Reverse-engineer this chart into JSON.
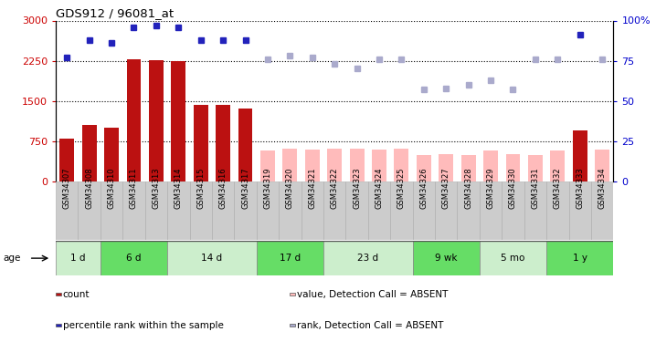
{
  "title": "GDS912 / 96081_at",
  "samples": [
    "GSM34307",
    "GSM34308",
    "GSM34310",
    "GSM34311",
    "GSM34313",
    "GSM34314",
    "GSM34315",
    "GSM34316",
    "GSM34317",
    "GSM34319",
    "GSM34320",
    "GSM34321",
    "GSM34322",
    "GSM34323",
    "GSM34324",
    "GSM34325",
    "GSM34326",
    "GSM34327",
    "GSM34328",
    "GSM34329",
    "GSM34330",
    "GSM34331",
    "GSM34332",
    "GSM34333",
    "GSM34334"
  ],
  "counts": [
    800,
    1050,
    1000,
    2270,
    2260,
    2250,
    1430,
    1430,
    1350,
    580,
    610,
    590,
    610,
    610,
    600,
    610,
    490,
    510,
    490,
    570,
    510,
    490,
    580,
    950,
    590
  ],
  "absent": [
    false,
    false,
    false,
    false,
    false,
    false,
    false,
    false,
    false,
    true,
    true,
    true,
    true,
    true,
    true,
    true,
    true,
    true,
    true,
    true,
    true,
    true,
    true,
    false,
    true
  ],
  "percentile": [
    77,
    88,
    86,
    96,
    97,
    96,
    88,
    88,
    88,
    76,
    78,
    77,
    73,
    70,
    76,
    76,
    57,
    58,
    60,
    63,
    57,
    76,
    76,
    91,
    76
  ],
  "pct_absent": [
    false,
    false,
    false,
    false,
    false,
    false,
    false,
    false,
    false,
    true,
    true,
    true,
    true,
    true,
    true,
    true,
    true,
    true,
    true,
    true,
    true,
    true,
    true,
    false,
    true
  ],
  "age_groups": [
    {
      "label": "1 d",
      "start": 0,
      "end": 2,
      "color": "#cceecc"
    },
    {
      "label": "6 d",
      "start": 2,
      "end": 5,
      "color": "#66dd66"
    },
    {
      "label": "14 d",
      "start": 5,
      "end": 9,
      "color": "#cceecc"
    },
    {
      "label": "17 d",
      "start": 9,
      "end": 12,
      "color": "#66dd66"
    },
    {
      "label": "23 d",
      "start": 12,
      "end": 16,
      "color": "#cceecc"
    },
    {
      "label": "9 wk",
      "start": 16,
      "end": 19,
      "color": "#66dd66"
    },
    {
      "label": "5 mo",
      "start": 19,
      "end": 22,
      "color": "#cceecc"
    },
    {
      "label": "1 y",
      "start": 22,
      "end": 25,
      "color": "#66dd66"
    }
  ],
  "ylim_left": [
    0,
    3000
  ],
  "ylim_right": [
    0,
    100
  ],
  "yticks_left": [
    0,
    750,
    1500,
    2250,
    3000
  ],
  "yticks_right": [
    0,
    25,
    50,
    75,
    100
  ],
  "bar_color_present": "#bb1111",
  "bar_color_absent": "#ffbbbb",
  "dot_color_present": "#2222bb",
  "dot_color_absent": "#aaaacc",
  "legend_items": [
    {
      "label": "count",
      "color": "#bb1111"
    },
    {
      "label": "percentile rank within the sample",
      "color": "#2222bb"
    },
    {
      "label": "value, Detection Call = ABSENT",
      "color": "#ffbbbb"
    },
    {
      "label": "rank, Detection Call = ABSENT",
      "color": "#aaaacc"
    }
  ]
}
